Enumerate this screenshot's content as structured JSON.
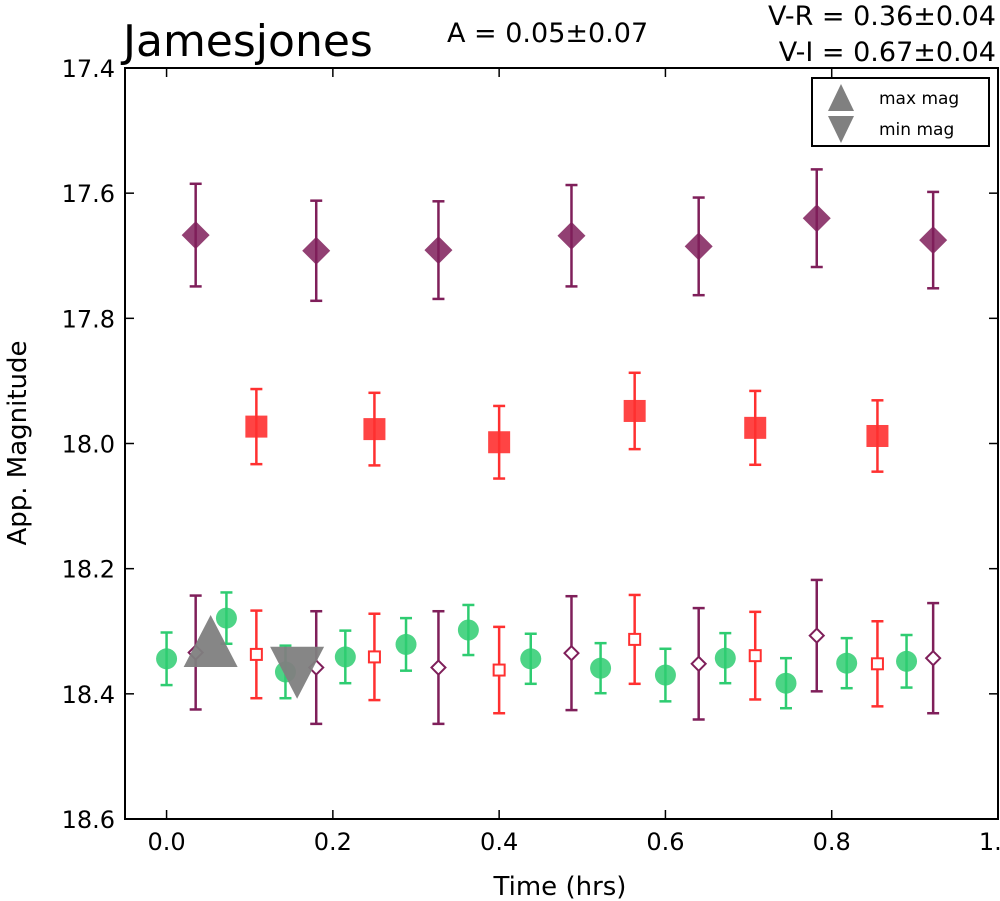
{
  "chart_data": {
    "type": "scatter",
    "title": "Jamesjones",
    "amplitude_label": "A  = 0.05±0.07",
    "color_labels": [
      "V-R = 0.36±0.04",
      "V-I  = 0.67±0.04"
    ],
    "xlabel": "Time (hrs)",
    "ylabel": "App. Magnitude",
    "xlim": [
      -0.05,
      1.0
    ],
    "ylim": [
      18.6,
      17.4
    ],
    "y_inverted": true,
    "x_ticks": [
      "0.0",
      "0.2",
      "0.4",
      "0.6",
      "0.8",
      "1.0"
    ],
    "y_ticks": [
      "17.4",
      "17.6",
      "17.8",
      "18.0",
      "18.2",
      "18.4",
      "18.6"
    ],
    "legend": {
      "placement": "top-right",
      "entries": [
        {
          "label": "max mag",
          "marker": "triangle-up",
          "color": "#808080"
        },
        {
          "label": "min mag",
          "marker": "triangle-down",
          "color": "#808080"
        }
      ]
    },
    "extrema": {
      "max_mag": {
        "x": 0.053,
        "y": 18.322
      },
      "min_mag": {
        "x": 0.157,
        "y": 18.36
      },
      "color": "#808080"
    },
    "series": [
      {
        "marker": "diamond-filled",
        "color": "#7f1f5a",
        "x": [
          0.035,
          0.18,
          0.327,
          0.487,
          0.64,
          0.782,
          0.922
        ],
        "y": [
          17.667,
          17.692,
          17.691,
          17.668,
          17.685,
          17.64,
          17.675
        ],
        "err": [
          0.082,
          0.08,
          0.078,
          0.081,
          0.078,
          0.078,
          0.077
        ]
      },
      {
        "marker": "square-filled",
        "color": "#ff3030",
        "x": [
          0.108,
          0.25,
          0.4,
          0.563,
          0.708,
          0.855
        ],
        "y": [
          17.973,
          17.977,
          17.998,
          17.948,
          17.975,
          17.988
        ],
        "err": [
          0.06,
          0.058,
          0.058,
          0.061,
          0.059,
          0.057
        ]
      },
      {
        "marker": "circle-filled",
        "color": "#2ecc71",
        "x": [
          0.0,
          0.072,
          0.143,
          0.215,
          0.288,
          0.363,
          0.438,
          0.522,
          0.6,
          0.672,
          0.745,
          0.818,
          0.89
        ],
        "y": [
          18.344,
          18.279,
          18.365,
          18.341,
          18.321,
          18.298,
          18.344,
          18.359,
          18.37,
          18.343,
          18.383,
          18.351,
          18.348
        ],
        "err": [
          0.042,
          0.041,
          0.042,
          0.042,
          0.042,
          0.04,
          0.04,
          0.04,
          0.042,
          0.04,
          0.04,
          0.04,
          0.042
        ]
      },
      {
        "marker": "diamond-open",
        "color": "#7f1f5a",
        "x": [
          0.035,
          0.18,
          0.327,
          0.487,
          0.64,
          0.782,
          0.922
        ],
        "y": [
          18.334,
          18.358,
          18.358,
          18.335,
          18.352,
          18.307,
          18.343
        ],
        "err": [
          0.091,
          0.09,
          0.09,
          0.091,
          0.089,
          0.089,
          0.088
        ]
      },
      {
        "marker": "square-open",
        "color": "#ff3030",
        "x": [
          0.108,
          0.25,
          0.4,
          0.563,
          0.708,
          0.855
        ],
        "y": [
          18.337,
          18.341,
          18.362,
          18.313,
          18.339,
          18.352
        ],
        "err": [
          0.07,
          0.069,
          0.069,
          0.071,
          0.07,
          0.068
        ]
      }
    ]
  }
}
